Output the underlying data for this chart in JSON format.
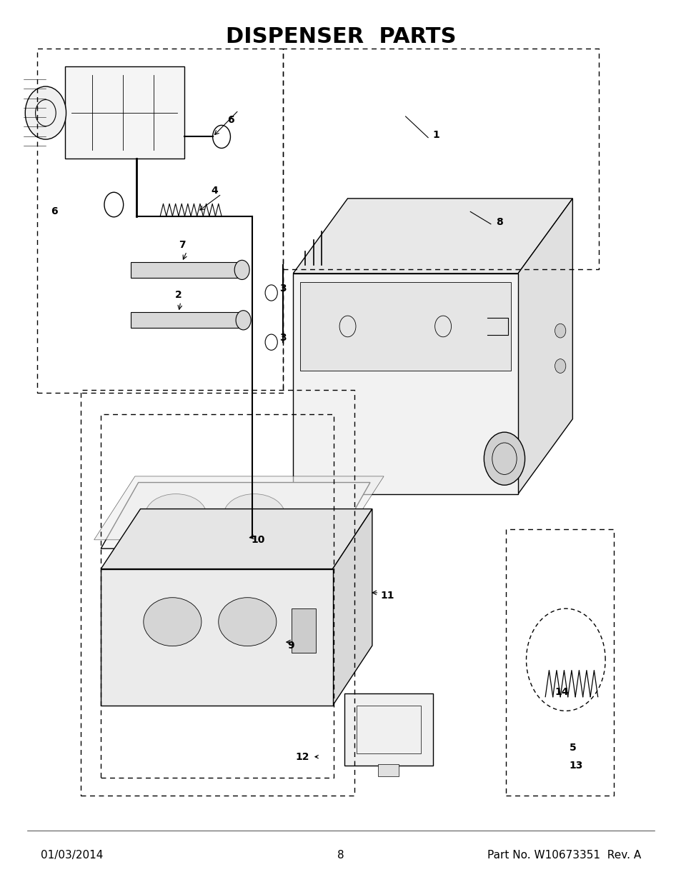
{
  "title": "DISPENSER  PARTS",
  "title_fontsize": 22,
  "title_fontweight": "bold",
  "footer_left": "01/03/2014",
  "footer_center": "8",
  "footer_right": "Part No. W10673351  Rev. A",
  "footer_fontsize": 11,
  "bg_color": "#ffffff",
  "line_color": "#000000"
}
